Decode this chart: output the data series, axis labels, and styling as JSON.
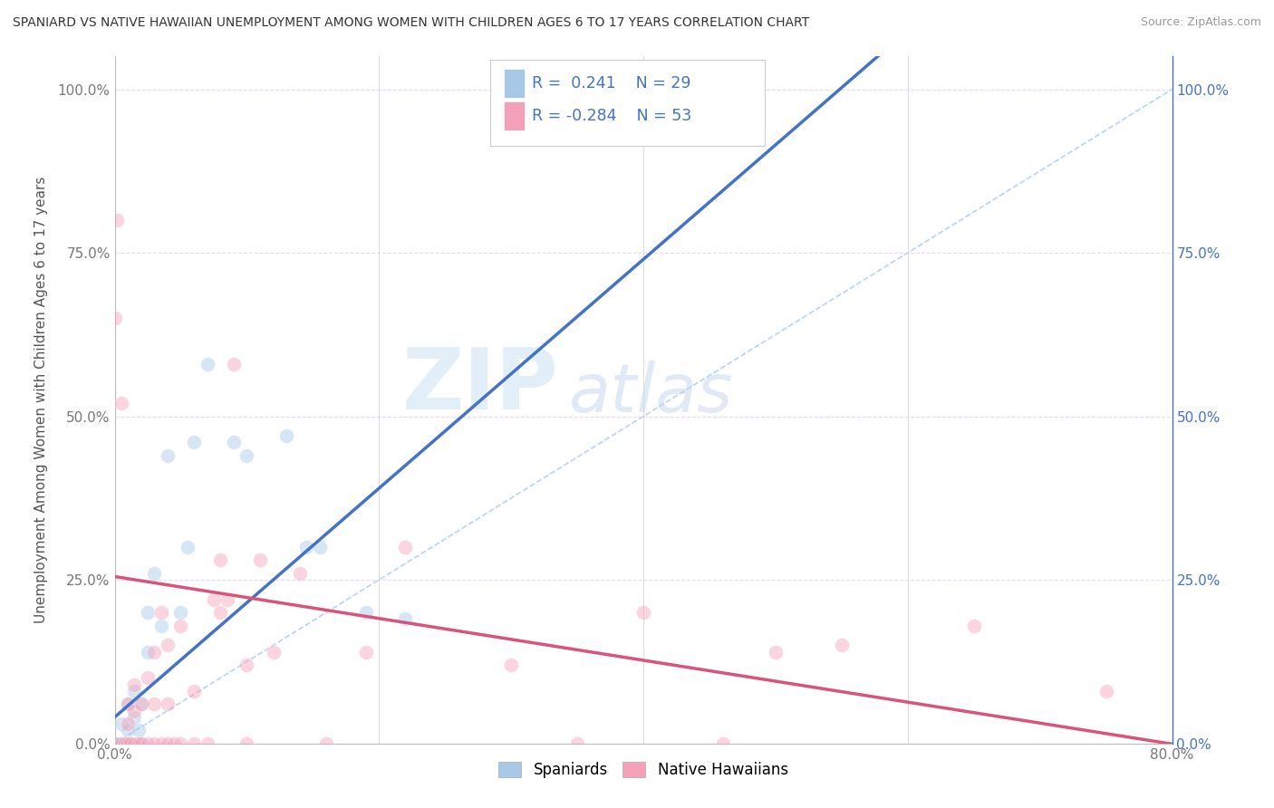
{
  "title": "SPANIARD VS NATIVE HAWAIIAN UNEMPLOYMENT AMONG WOMEN WITH CHILDREN AGES 6 TO 17 YEARS CORRELATION CHART",
  "source": "Source: ZipAtlas.com",
  "ylabel": "Unemployment Among Women with Children Ages 6 to 17 years",
  "xlim": [
    0.0,
    0.8
  ],
  "ylim": [
    0.0,
    1.05
  ],
  "xtick_labels": [
    "0.0%",
    "80.0%"
  ],
  "xtick_vals": [
    0.0,
    0.8
  ],
  "ytick_labels": [
    "0.0%",
    "25.0%",
    "50.0%",
    "75.0%",
    "100.0%"
  ],
  "ytick_vals": [
    0.0,
    0.25,
    0.5,
    0.75,
    1.0
  ],
  "right_ytick_labels": [
    "0.0%",
    "25.0%",
    "50.0%",
    "75.0%",
    "100.0%"
  ],
  "right_ytick_vals": [
    0.0,
    0.25,
    0.5,
    0.75,
    1.0
  ],
  "spaniard_color": "#a8c8e8",
  "hawaiian_color": "#f4a0b8",
  "spaniard_line_color": "#4472c4",
  "hawaiian_line_color": "#d9547a",
  "diagonal_line_color": "#b8d4ee",
  "legend_R_spaniard": "R =  0.241",
  "legend_N_spaniard": "N = 29",
  "legend_R_hawaiian": "R = -0.284",
  "legend_N_hawaiian": "N = 53",
  "legend_label_spaniard": "Spaniards",
  "legend_label_hawaiian": "Native Hawaiians",
  "watermark_zip": "ZIP",
  "watermark_atlas": "atlas",
  "background_color": "#ffffff",
  "grid_color": "#e8d8f0",
  "spaniard_x": [
    0.0,
    0.002,
    0.005,
    0.005,
    0.008,
    0.01,
    0.01,
    0.012,
    0.015,
    0.015,
    0.018,
    0.02,
    0.02,
    0.025,
    0.025,
    0.03,
    0.035,
    0.04,
    0.05,
    0.055,
    0.06,
    0.07,
    0.09,
    0.1,
    0.13,
    0.145,
    0.155,
    0.19,
    0.22
  ],
  "spaniard_y": [
    0.0,
    0.0,
    0.0,
    0.03,
    0.0,
    0.02,
    0.06,
    0.0,
    0.04,
    0.08,
    0.02,
    0.0,
    0.06,
    0.14,
    0.2,
    0.26,
    0.18,
    0.44,
    0.2,
    0.3,
    0.46,
    0.58,
    0.46,
    0.44,
    0.47,
    0.3,
    0.3,
    0.2,
    0.19
  ],
  "hawaiian_x": [
    0.0,
    0.0,
    0.002,
    0.005,
    0.005,
    0.008,
    0.01,
    0.01,
    0.01,
    0.012,
    0.015,
    0.015,
    0.015,
    0.018,
    0.02,
    0.02,
    0.025,
    0.025,
    0.03,
    0.03,
    0.03,
    0.035,
    0.035,
    0.04,
    0.04,
    0.04,
    0.045,
    0.05,
    0.05,
    0.06,
    0.06,
    0.07,
    0.075,
    0.08,
    0.08,
    0.085,
    0.09,
    0.1,
    0.1,
    0.11,
    0.12,
    0.14,
    0.16,
    0.19,
    0.22,
    0.3,
    0.35,
    0.4,
    0.46,
    0.5,
    0.55,
    0.65,
    0.75
  ],
  "hawaiian_y": [
    0.0,
    0.65,
    0.8,
    0.0,
    0.52,
    0.0,
    0.0,
    0.03,
    0.06,
    0.0,
    0.0,
    0.05,
    0.09,
    0.0,
    0.0,
    0.06,
    0.0,
    0.1,
    0.0,
    0.06,
    0.14,
    0.0,
    0.2,
    0.0,
    0.06,
    0.15,
    0.0,
    0.0,
    0.18,
    0.0,
    0.08,
    0.0,
    0.22,
    0.2,
    0.28,
    0.22,
    0.58,
    0.0,
    0.12,
    0.28,
    0.14,
    0.26,
    0.0,
    0.14,
    0.3,
    0.12,
    0.0,
    0.2,
    0.0,
    0.14,
    0.15,
    0.18,
    0.08
  ],
  "marker_size": 130,
  "marker_alpha": 0.45,
  "marker_edgewidth": 0.5,
  "spaniard_line_intercept": 0.04,
  "spaniard_line_slope": 1.75,
  "hawaiian_line_intercept": 0.255,
  "hawaiian_line_slope": -0.32
}
